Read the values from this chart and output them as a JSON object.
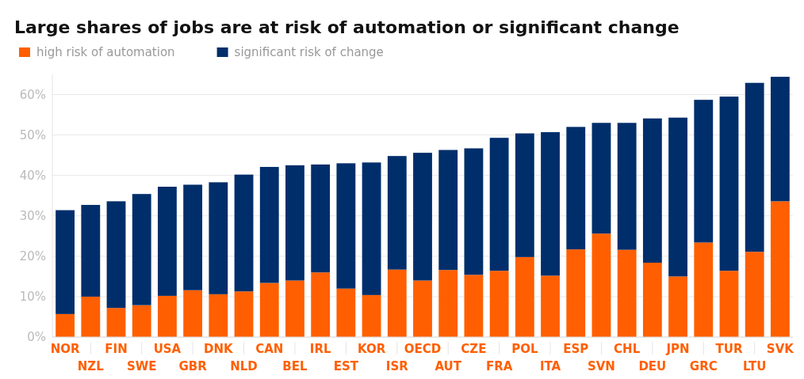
{
  "chart_data": {
    "type": "bar",
    "title": "Large shares of jobs are at risk of automation or significant change",
    "stacked": true,
    "legend": "top left",
    "grid": "y",
    "categories": [
      "NOR",
      "NZL",
      "FIN",
      "SWE",
      "USA",
      "GBR",
      "DNK",
      "NLD",
      "CAN",
      "BEL",
      "IRL",
      "EST",
      "KOR",
      "ISR",
      "OECD",
      "AUT",
      "CZE",
      "FRA",
      "POL",
      "ITA",
      "ESP",
      "SVN",
      "CHL",
      "DEU",
      "JPN",
      "GRC",
      "TUR",
      "LTU",
      "SVK"
    ],
    "series": [
      {
        "name": "high risk of automation",
        "color": "#ff5f00",
        "values": [
          5.7,
          10.0,
          7.2,
          7.9,
          10.2,
          11.6,
          10.6,
          11.3,
          13.4,
          14.0,
          16.0,
          12.0,
          10.4,
          16.7,
          14.0,
          16.6,
          15.4,
          16.4,
          19.8,
          15.2,
          21.7,
          25.6,
          21.6,
          18.4,
          15.0,
          23.4,
          16.4,
          21.1,
          33.6
        ]
      },
      {
        "name": "significant risk of change",
        "color": "#002e6b",
        "values": [
          25.7,
          22.7,
          26.4,
          27.5,
          27.0,
          26.1,
          27.7,
          28.9,
          28.7,
          28.5,
          26.7,
          31.0,
          32.8,
          28.1,
          31.6,
          29.7,
          31.3,
          32.9,
          30.6,
          35.5,
          30.3,
          27.4,
          31.4,
          35.7,
          39.3,
          35.3,
          43.1,
          41.8,
          30.8
        ]
      }
    ],
    "ylim": [
      0,
      65
    ],
    "yticks": [
      {
        "value": 0,
        "label": "0%"
      },
      {
        "value": 10,
        "label": "10%"
      },
      {
        "value": 20,
        "label": "20%"
      },
      {
        "value": 30,
        "label": "30%"
      },
      {
        "value": 40,
        "label": "40%"
      },
      {
        "value": 50,
        "label": "50%"
      },
      {
        "value": 60,
        "label": "60%"
      }
    ]
  }
}
